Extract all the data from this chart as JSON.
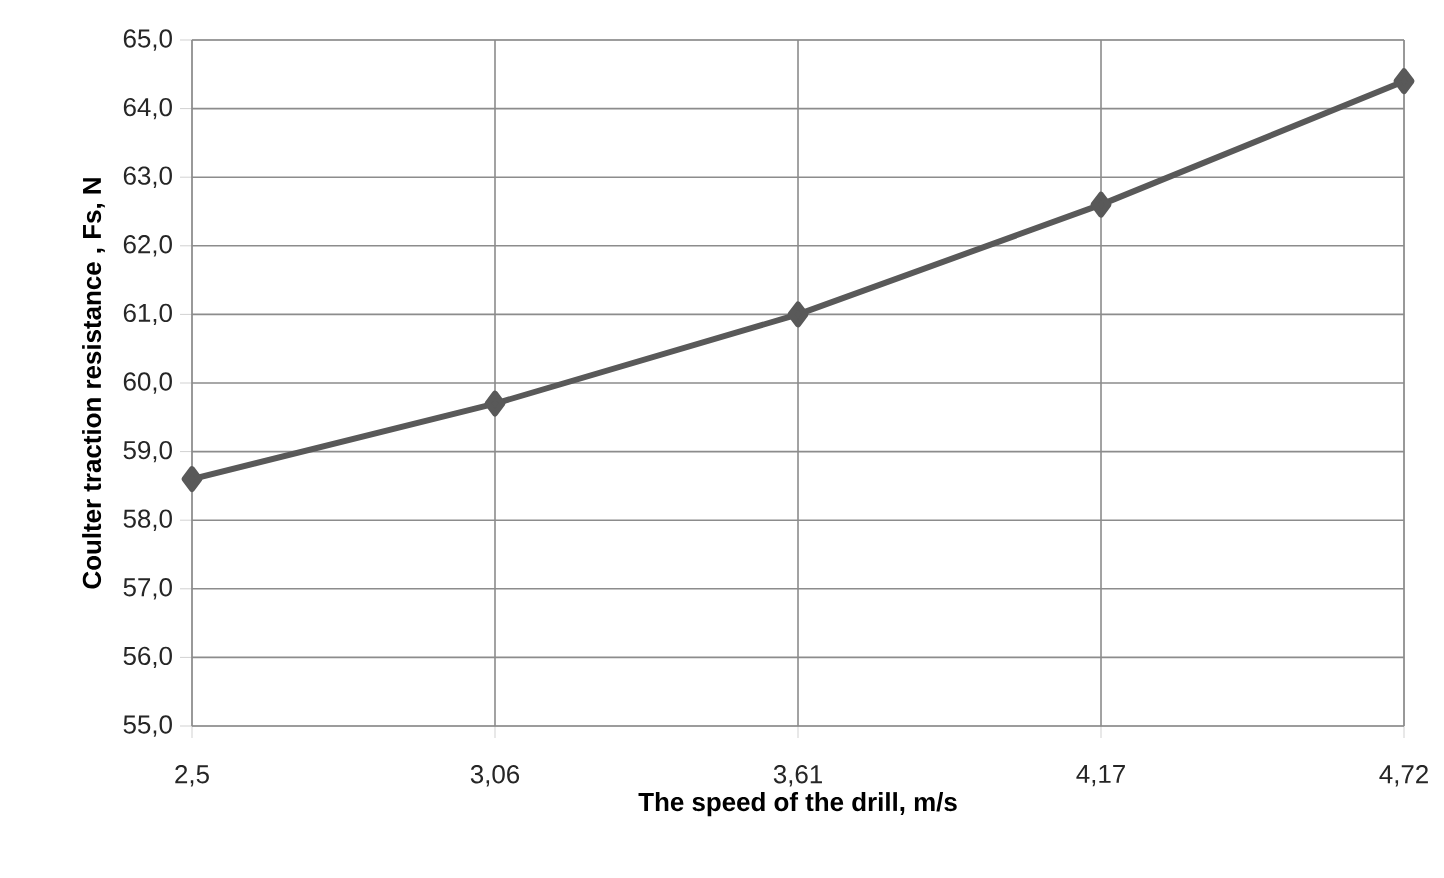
{
  "chart_data": {
    "type": "line",
    "xlabel": "The speed of the drill, m/s",
    "ylabel": "Coulter traction resistance , Fs, N",
    "categories": [
      "2,5",
      "3,06",
      "3,61",
      "4,17",
      "4,72"
    ],
    "series": [
      {
        "color": "#595959",
        "values": [
          58.6,
          59.7,
          61.0,
          62.6,
          64.4
        ]
      }
    ],
    "ylim": [
      55,
      65
    ],
    "yticks": [
      {
        "value": 55,
        "label": "55,0"
      },
      {
        "value": 56,
        "label": "56,0"
      },
      {
        "value": 57,
        "label": "57,0"
      },
      {
        "value": 58,
        "label": "58,0"
      },
      {
        "value": 59,
        "label": "59,0"
      },
      {
        "value": 60,
        "label": "60,0"
      },
      {
        "value": 61,
        "label": "61,0"
      },
      {
        "value": 62,
        "label": "62,0"
      },
      {
        "value": 63,
        "label": "63,0"
      },
      {
        "value": 64,
        "label": "64,0"
      },
      {
        "value": 65,
        "label": "65,0"
      }
    ],
    "grid": true,
    "marker": "diamond",
    "line_style": "solid"
  }
}
